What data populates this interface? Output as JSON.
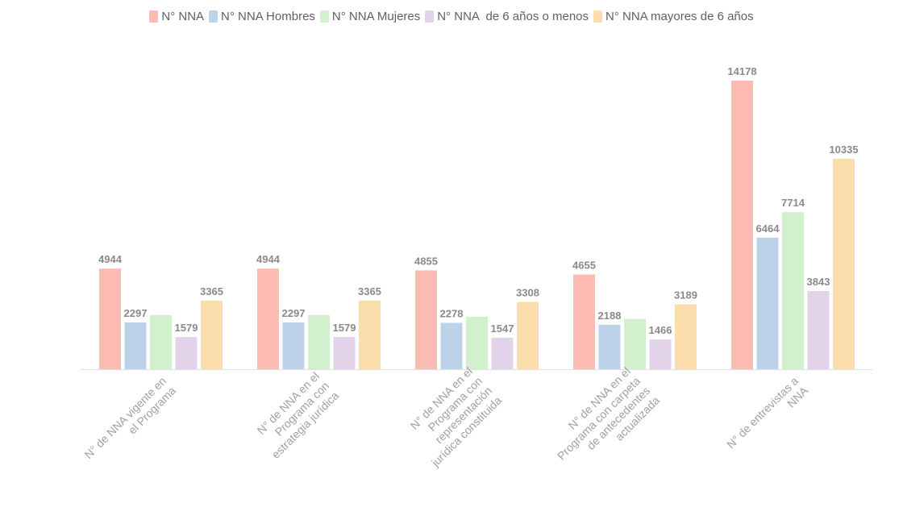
{
  "chart_data": {
    "type": "bar",
    "categories": [
      [
        "N° de NNA vigente en",
        "el Programa"
      ],
      [
        "N° de NNA en el",
        "Programa con",
        "estrategia jurídica"
      ],
      [
        "N° de NNA en el",
        "Programa con",
        "representación",
        "jurídica constituida"
      ],
      [
        "N° de NNA en el",
        "Programa con carpeta",
        "de antecedentes",
        "actualizada"
      ],
      [
        "N° de entrevistas a",
        "NNA"
      ]
    ],
    "series": [
      {
        "name": "N° NNA",
        "color": "#fcbcb4",
        "values": [
          4944,
          4944,
          4855,
          4655,
          14178
        ],
        "labels": [
          true,
          true,
          true,
          true,
          true
        ]
      },
      {
        "name": "N° NNA Hombres",
        "color": "#bdd3ea",
        "values": [
          2297,
          2297,
          2278,
          2188,
          6464
        ],
        "labels": [
          true,
          true,
          true,
          true,
          true
        ]
      },
      {
        "name": "N° NNA Mujeres",
        "color": "#d3f0ce",
        "values": [
          2660,
          2660,
          2577,
          2467,
          7714
        ],
        "labels": [
          false,
          false,
          false,
          false,
          true
        ]
      },
      {
        "name": "N° NNA  de 6 años o menos",
        "color": "#e2d2ea",
        "values": [
          1579,
          1579,
          1547,
          1466,
          3843
        ],
        "labels": [
          true,
          true,
          true,
          true,
          true
        ]
      },
      {
        "name": "N° NNA mayores de 6 años",
        "color": "#fcdeac",
        "values": [
          3365,
          3365,
          3308,
          3189,
          10335
        ],
        "labels": [
          true,
          true,
          true,
          true,
          true
        ]
      }
    ],
    "ylim": [
      0,
      14178
    ],
    "grid": false,
    "legend_position": "top-center"
  }
}
